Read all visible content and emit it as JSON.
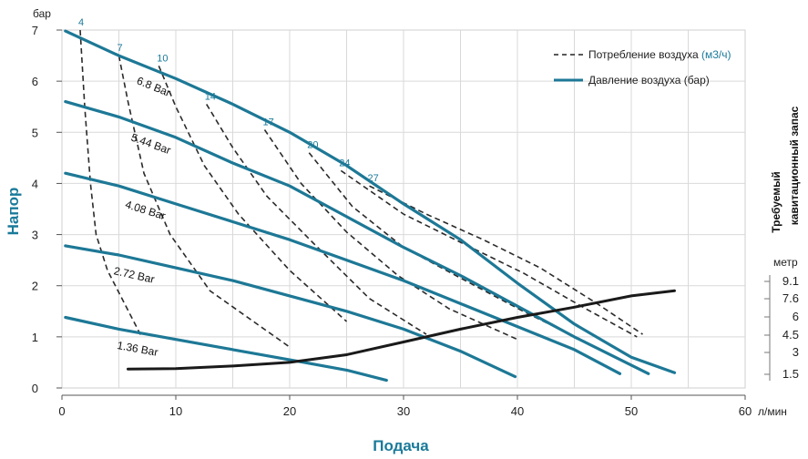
{
  "chart_data": {
    "type": "line",
    "xlabel": "Подача",
    "x_unit": "л/мин",
    "ylabel": "Напор",
    "y_unit": "бар",
    "xlim": [
      0,
      60
    ],
    "ylim": [
      0,
      7
    ],
    "x_ticks": [
      "0",
      "10",
      "20",
      "30",
      "40",
      "50",
      "60"
    ],
    "y_ticks": [
      "0",
      "1",
      "2",
      "3",
      "4",
      "5",
      "6",
      "7"
    ],
    "legend": {
      "consumption_label": "Потребление воздуха",
      "consumption_unit": "(м3/ч)",
      "pressure_label": "Давление воздуха (бар)"
    },
    "pressure_series": [
      {
        "name": "6.8 Bar",
        "points": [
          [
            0.3,
            6.98
          ],
          [
            5,
            6.5
          ],
          [
            10,
            6.05
          ],
          [
            15,
            5.55
          ],
          [
            20,
            5.0
          ],
          [
            25,
            4.35
          ],
          [
            30,
            3.6
          ],
          [
            35,
            2.9
          ],
          [
            40,
            2.05
          ],
          [
            45,
            1.25
          ],
          [
            50,
            0.6
          ],
          [
            53.8,
            0.3
          ]
        ]
      },
      {
        "name": "5.44 Bar",
        "points": [
          [
            0.3,
            5.6
          ],
          [
            5,
            5.3
          ],
          [
            10,
            4.9
          ],
          [
            15,
            4.4
          ],
          [
            20,
            3.95
          ],
          [
            25,
            3.35
          ],
          [
            30,
            2.75
          ],
          [
            35,
            2.2
          ],
          [
            40,
            1.6
          ],
          [
            45,
            1.0
          ],
          [
            51.5,
            0.28
          ]
        ]
      },
      {
        "name": "4.08 Bar",
        "points": [
          [
            0.3,
            4.2
          ],
          [
            5,
            3.95
          ],
          [
            10,
            3.6
          ],
          [
            15,
            3.25
          ],
          [
            20,
            2.9
          ],
          [
            25,
            2.5
          ],
          [
            30,
            2.1
          ],
          [
            35,
            1.65
          ],
          [
            40,
            1.2
          ],
          [
            45,
            0.75
          ],
          [
            49,
            0.28
          ]
        ]
      },
      {
        "name": "2.72 Bar",
        "points": [
          [
            0.3,
            2.78
          ],
          [
            5,
            2.6
          ],
          [
            10,
            2.35
          ],
          [
            15,
            2.1
          ],
          [
            20,
            1.8
          ],
          [
            25,
            1.5
          ],
          [
            30,
            1.15
          ],
          [
            35,
            0.72
          ],
          [
            39.8,
            0.22
          ]
        ]
      },
      {
        "name": "1.36 Bar",
        "points": [
          [
            0.3,
            1.38
          ],
          [
            5,
            1.15
          ],
          [
            10,
            0.95
          ],
          [
            15,
            0.75
          ],
          [
            20,
            0.55
          ],
          [
            25,
            0.35
          ],
          [
            28.5,
            0.15
          ]
        ]
      }
    ],
    "consumption_curves": [
      {
        "name": "4",
        "points": [
          [
            1.6,
            7.0
          ],
          [
            2.0,
            5.5
          ],
          [
            2.5,
            4.0
          ],
          [
            3.0,
            3.0
          ],
          [
            4.0,
            2.3
          ],
          [
            7.0,
            1.0
          ]
        ]
      },
      {
        "name": "7",
        "points": [
          [
            5.0,
            6.5
          ],
          [
            5.8,
            5.6
          ],
          [
            7.2,
            4.2
          ],
          [
            9.5,
            3.0
          ],
          [
            13.0,
            1.9
          ],
          [
            20.0,
            0.8
          ]
        ]
      },
      {
        "name": "10",
        "points": [
          [
            8.5,
            6.3
          ],
          [
            10.0,
            5.5
          ],
          [
            12.5,
            4.35
          ],
          [
            15.5,
            3.4
          ],
          [
            20.0,
            2.3
          ],
          [
            25.0,
            1.3
          ]
        ]
      },
      {
        "name": "14",
        "points": [
          [
            12.7,
            5.55
          ],
          [
            15.0,
            4.7
          ],
          [
            18.0,
            3.75
          ],
          [
            22.0,
            2.85
          ],
          [
            27.0,
            1.75
          ],
          [
            32.0,
            1.05
          ]
        ]
      },
      {
        "name": "17",
        "points": [
          [
            17.8,
            5.05
          ],
          [
            21.0,
            4.0
          ],
          [
            25.0,
            3.05
          ],
          [
            29.5,
            2.2
          ],
          [
            34.0,
            1.55
          ],
          [
            40.0,
            0.95
          ]
        ]
      },
      {
        "name": "20",
        "points": [
          [
            21.7,
            4.6
          ],
          [
            25.5,
            3.55
          ],
          [
            30.0,
            2.75
          ],
          [
            35.0,
            2.15
          ],
          [
            40.5,
            1.5
          ],
          [
            46.0,
            0.9
          ]
        ]
      },
      {
        "name": "24",
        "points": [
          [
            24.5,
            4.25
          ],
          [
            30.0,
            3.4
          ],
          [
            35.0,
            2.85
          ],
          [
            40.5,
            2.25
          ],
          [
            46.0,
            1.55
          ],
          [
            50.5,
            1.0
          ]
        ]
      },
      {
        "name": "27",
        "points": [
          [
            27.0,
            3.95
          ],
          [
            32.0,
            3.4
          ],
          [
            37.0,
            2.9
          ],
          [
            42.0,
            2.35
          ],
          [
            47.0,
            1.65
          ],
          [
            51.0,
            1.05
          ]
        ]
      }
    ],
    "npsh": {
      "title_line1": "Требуемый",
      "title_line2": "кавитационный запас",
      "unit": "метр",
      "ticks": [
        "1.5",
        "3",
        "4.5",
        "6",
        "7.6",
        "9.1"
      ],
      "points": [
        [
          5.8,
          0.37
        ],
        [
          10,
          0.38
        ],
        [
          15,
          0.43
        ],
        [
          20,
          0.5
        ],
        [
          25,
          0.65
        ],
        [
          30,
          0.9
        ],
        [
          35,
          1.15
        ],
        [
          40,
          1.38
        ],
        [
          45,
          1.58
        ],
        [
          50,
          1.8
        ],
        [
          53.8,
          1.9
        ]
      ]
    }
  }
}
